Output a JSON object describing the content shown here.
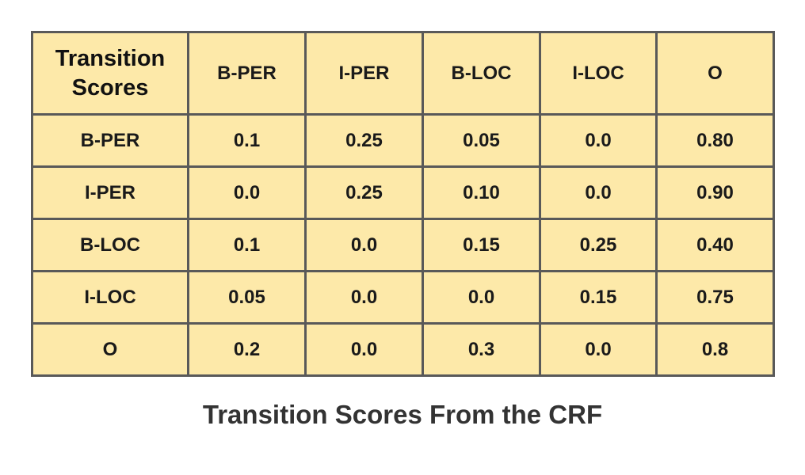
{
  "chart_data": {
    "type": "table",
    "title": "Transition Scores From the CRF",
    "corner_label": "Transition\nScores",
    "columns": [
      "B-PER",
      "I-PER",
      "B-LOC",
      "I-LOC",
      "O"
    ],
    "rows": [
      {
        "label": "B-PER",
        "values": [
          "0.1",
          "0.25",
          "0.05",
          "0.0",
          "0.80"
        ]
      },
      {
        "label": "I-PER",
        "values": [
          "0.0",
          "0.25",
          "0.10",
          "0.0",
          "0.90"
        ]
      },
      {
        "label": "B-LOC",
        "values": [
          "0.1",
          "0.0",
          "0.15",
          "0.25",
          "0.40"
        ]
      },
      {
        "label": "I-LOC",
        "values": [
          "0.05",
          "0.0",
          "0.0",
          "0.15",
          "0.75"
        ]
      },
      {
        "label": "O",
        "values": [
          "0.2",
          "0.0",
          "0.3",
          "0.0",
          "0.8"
        ]
      }
    ],
    "cell_color": "#fde9a9",
    "border_color": "#595959",
    "caption_color": "#333333"
  }
}
